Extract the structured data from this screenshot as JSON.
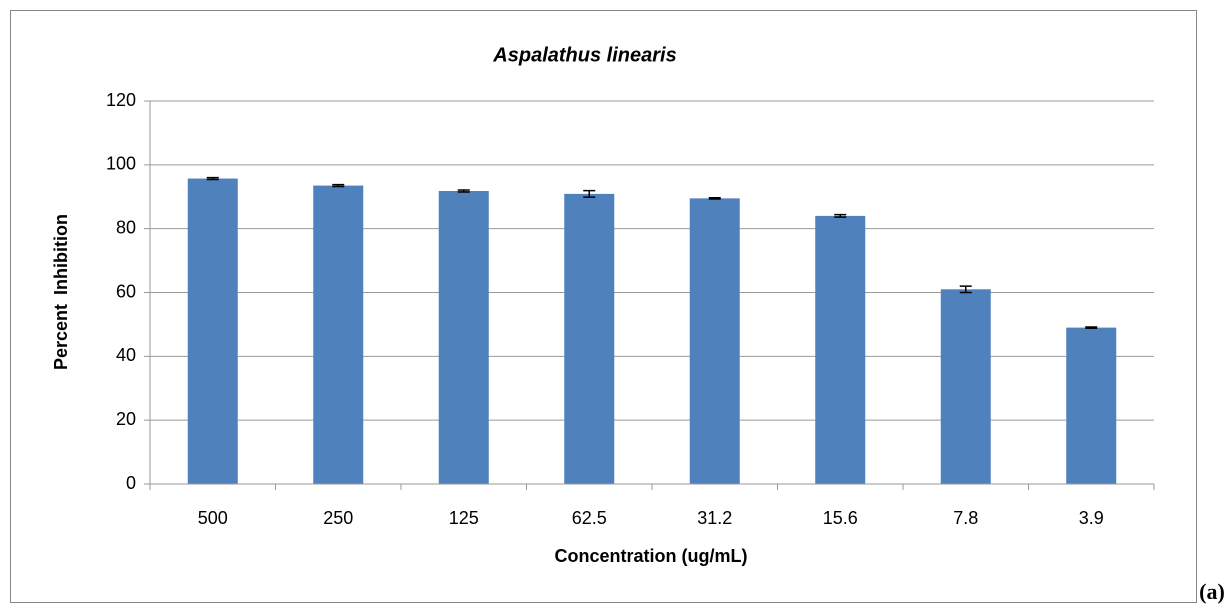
{
  "chart_data": {
    "type": "bar",
    "title": "Aspalathus linearis",
    "x_label": "Concentration (ug/mL)",
    "y_label": "Percent Inhibition",
    "annotation": "(a)",
    "categories": [
      "500",
      "250",
      "125",
      "62.5",
      "31.2",
      "15.6",
      "7.8",
      "3.9"
    ],
    "values": [
      95.7,
      93.5,
      91.8,
      90.9,
      89.5,
      84.0,
      61.0,
      49.0
    ],
    "errors": [
      0.3,
      0.3,
      0.3,
      1.0,
      0.2,
      0.4,
      1.0,
      0.2
    ],
    "color": "#4f81bd",
    "ylim": [
      0,
      120
    ],
    "yticks": [
      0,
      20,
      40,
      60,
      80,
      100,
      120
    ],
    "grid": true
  }
}
